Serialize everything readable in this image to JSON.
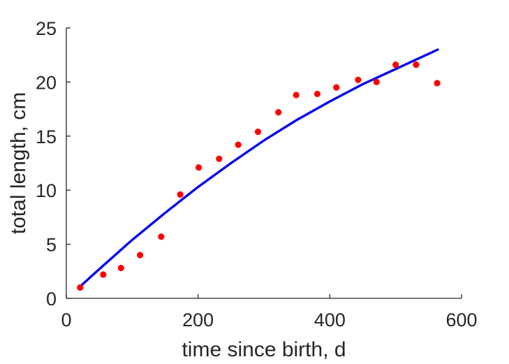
{
  "chart_data": {
    "type": "scatter",
    "xlabel": "time since birth, d",
    "ylabel": "total length, cm",
    "xlim": [
      0,
      600
    ],
    "ylim": [
      0,
      25
    ],
    "xticks": [
      0,
      200,
      400,
      600
    ],
    "yticks": [
      0,
      5,
      10,
      15,
      20,
      25
    ],
    "xtick_labels": [
      "0",
      "200",
      "400",
      "600"
    ],
    "ytick_labels": [
      "0",
      "5",
      "10",
      "15",
      "20",
      "25"
    ],
    "grid": false,
    "series": [
      {
        "kind": "scatter",
        "color": "#ff0000",
        "points": [
          {
            "x": 21,
            "y": 1.0
          },
          {
            "x": 56,
            "y": 2.2
          },
          {
            "x": 83,
            "y": 2.8
          },
          {
            "x": 112,
            "y": 4.0
          },
          {
            "x": 144,
            "y": 5.7
          },
          {
            "x": 173,
            "y": 9.6
          },
          {
            "x": 201,
            "y": 12.1
          },
          {
            "x": 232,
            "y": 12.9
          },
          {
            "x": 261,
            "y": 14.2
          },
          {
            "x": 291,
            "y": 15.4
          },
          {
            "x": 322,
            "y": 17.2
          },
          {
            "x": 349,
            "y": 18.8
          },
          {
            "x": 381,
            "y": 18.9
          },
          {
            "x": 410,
            "y": 19.5
          },
          {
            "x": 443,
            "y": 20.2
          },
          {
            "x": 471,
            "y": 20.0
          },
          {
            "x": 500,
            "y": 21.6
          },
          {
            "x": 531,
            "y": 21.6
          },
          {
            "x": 563,
            "y": 19.9
          }
        ]
      },
      {
        "kind": "line",
        "color": "#0000ee",
        "points": [
          {
            "x": 21,
            "y": 1.1
          },
          {
            "x": 50,
            "y": 2.7
          },
          {
            "x": 100,
            "y": 5.4
          },
          {
            "x": 150,
            "y": 7.9
          },
          {
            "x": 200,
            "y": 10.3
          },
          {
            "x": 250,
            "y": 12.5
          },
          {
            "x": 300,
            "y": 14.6
          },
          {
            "x": 350,
            "y": 16.5
          },
          {
            "x": 400,
            "y": 18.2
          },
          {
            "x": 450,
            "y": 19.8
          },
          {
            "x": 500,
            "y": 21.2
          },
          {
            "x": 564,
            "y": 23.0
          }
        ]
      }
    ]
  }
}
